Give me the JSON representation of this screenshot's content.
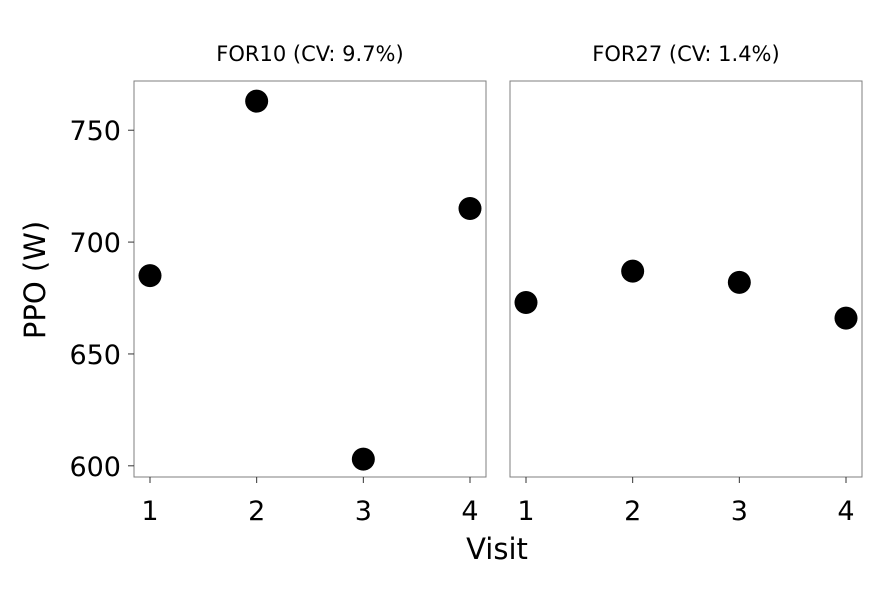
{
  "chart_data": {
    "type": "scatter",
    "xlabel": "Visit",
    "ylabel": "PPO (W)",
    "xlim": [
      0.85,
      4.15
    ],
    "ylim": [
      595,
      772
    ],
    "x_ticks": [
      1,
      2,
      3,
      4
    ],
    "y_ticks": [
      600,
      650,
      700,
      750
    ],
    "grid": false,
    "legend": "none",
    "colors": {
      "point": "#000000",
      "panel_border": "#7f7f7f",
      "tick": "#333333",
      "text": "#000000"
    },
    "panels": [
      {
        "title": "FOR10 (CV: 9.7%)",
        "x": [
          1,
          2,
          3,
          4
        ],
        "y": [
          685,
          763,
          603,
          715
        ]
      },
      {
        "title": "FOR27 (CV: 1.4%)",
        "x": [
          1,
          2,
          3,
          4
        ],
        "y": [
          673,
          687,
          682,
          666
        ]
      }
    ]
  }
}
